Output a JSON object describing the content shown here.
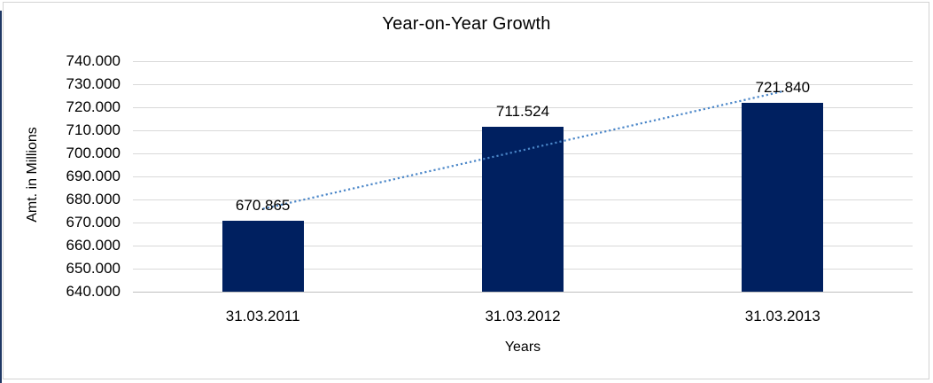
{
  "chart_data": {
    "type": "bar",
    "title": "Year-on-Year Growth",
    "categories": [
      "31.03.2011",
      "31.03.2012",
      "31.03.2013"
    ],
    "values": [
      670.865,
      711.524,
      721.84
    ],
    "value_labels": [
      "670.865",
      "711.524",
      "721.840"
    ],
    "xlabel": "Years",
    "ylabel": "Amt. in Millions",
    "ylim": [
      640,
      740
    ],
    "ytick_step": 10,
    "ytick_labels": [
      "640.000",
      "650.000",
      "660.000",
      "670.000",
      "680.000",
      "690.000",
      "700.000",
      "710.000",
      "720.000",
      "730.000",
      "740.000"
    ],
    "grid": true,
    "legend": "none",
    "trendline": {
      "type": "linear",
      "style": "dotted"
    },
    "colors": {
      "bar": "#002060",
      "trendline": "#4A86C8",
      "gridline": "#D9D9D9",
      "axis_line": "#BFBFBF",
      "text": "#000000",
      "frame_border": "#D3D3D3",
      "left_edge_line": "#1F3864",
      "background": "#FFFFFF"
    }
  }
}
